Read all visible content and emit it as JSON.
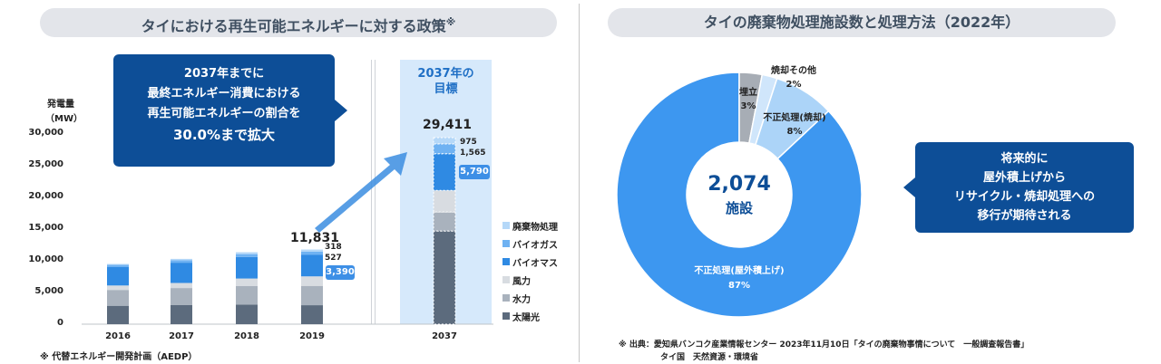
{
  "left": {
    "title": "タイにおける再生可能エネルギーに対する政策",
    "title_mark": "※",
    "unit": [
      "発電量",
      "（MW）"
    ],
    "callout": [
      "2037年までに",
      "最終エネルギー消費における",
      "再生可能エネルギーの割合を",
      "30.0%まで拡大"
    ],
    "target_label": [
      "2037年の",
      "目標"
    ],
    "total_2019": "11,831",
    "total_2037": "29,411",
    "labels_2019": [
      "318",
      "527"
    ],
    "tag_2019": "3,390",
    "labels_2037": [
      "975",
      "1,565"
    ],
    "tag_2037": "5,790",
    "footnote": "※ 代替エネルギー開発計画（AEDP）"
  },
  "chart_data": [
    {
      "type": "bar",
      "stacked": true,
      "categories": [
        "2016",
        "2017",
        "2018",
        "2019",
        "2037"
      ],
      "ylim": [
        0,
        30000
      ],
      "yticks": [
        "0",
        "5,000",
        "10,000",
        "15,000",
        "20,000",
        "25,000",
        "30,000"
      ],
      "legend_position": "right",
      "series": [
        {
          "name": "太陽光",
          "color": "#5c6b7d",
          "values": [
            2900,
            3000,
            3100,
            2990,
            14700
          ]
        },
        {
          "name": "水力",
          "color": "#a9b2bd",
          "values": [
            2500,
            2700,
            2900,
            3050,
            3000
          ]
        },
        {
          "name": "風力",
          "color": "#d8dce1",
          "values": [
            700,
            800,
            1200,
            1500,
            3400
          ]
        },
        {
          "name": "バイオマス",
          "color": "#2f8ae3",
          "values": [
            2900,
            3200,
            3400,
            3390,
            5790
          ]
        },
        {
          "name": "バイオガス",
          "color": "#6fb2f2",
          "values": [
            350,
            400,
            450,
            527,
            1565
          ]
        },
        {
          "name": "廃棄物処理",
          "color": "#b5d8f8",
          "values": [
            150,
            200,
            300,
            318,
            975
          ]
        }
      ],
      "totals": {
        "2019": 11831,
        "2037": 29411
      }
    },
    {
      "type": "pie",
      "donut": true,
      "center_value": "2,074",
      "center_unit": "施設",
      "slices": [
        {
          "label": "不正処理(屋外積上げ)",
          "value": 87,
          "display": "87%",
          "color": "#3d97f0"
        },
        {
          "label": "埋立",
          "value": 3,
          "display": "3%",
          "color": "#a7adb5"
        },
        {
          "label": "焼却その他",
          "value": 2,
          "display": "2%",
          "color": "#d0e6fb"
        },
        {
          "label": "不正処理(焼却)",
          "value": 8,
          "display": "8%",
          "color": "#acd4f8"
        }
      ]
    }
  ],
  "right": {
    "title": "タイの廃棄物処理施設数と処理方法（2022年）",
    "callout": [
      "将来的に",
      "屋外積上げから",
      "リサイクル・焼却処理への",
      "移行が期待される"
    ],
    "source": [
      "※ 出典：愛知県バンコク産業情報センター 2023年11月10日「タイの廃棄物事情について　一般調査報告書」",
      "タイ国　天然資源・環境省"
    ]
  }
}
